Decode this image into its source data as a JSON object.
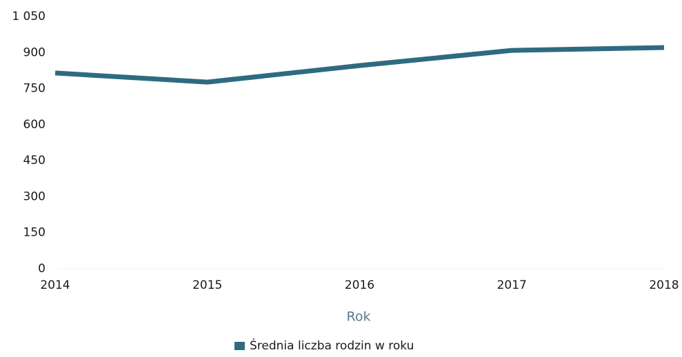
{
  "chart_data": {
    "type": "line",
    "categories": [
      "2014",
      "2015",
      "2016",
      "2017",
      "2018"
    ],
    "series": [
      {
        "name": "Średnia liczba rodzin w roku",
        "color": "#2f6b80",
        "values": [
          815,
          777,
          846,
          909,
          921
        ]
      }
    ],
    "xlabel": "Rok",
    "ylim": [
      0,
      1050
    ],
    "yticks": [
      0,
      150,
      300,
      450,
      600,
      750,
      900,
      {
        "value": 1050,
        "label": "1 050"
      }
    ],
    "grid": false,
    "legend": "bottom"
  }
}
